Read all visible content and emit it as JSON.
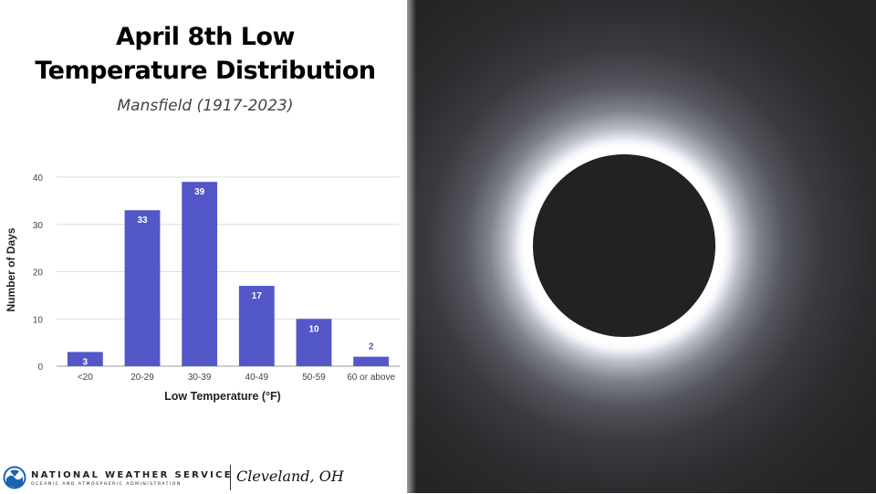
{
  "title_line1": "April 8th Low",
  "title_line2": "Temperature Distribution",
  "subtitle": "Mansfield (1917-2023)",
  "footer": {
    "agency_name": "NATIONAL WEATHER SERVICE",
    "agency_subtitle": "OCEANIC AND ATMOSPHERIC ADMINISTRATION",
    "office": "Cleveland, OH",
    "logo_icon": "noaa-logo-icon"
  },
  "photo": {
    "subject": "eclipse-photo"
  },
  "colors": {
    "bar": "#5457c8",
    "grid": "#dddddd",
    "axis_text": "#444444"
  },
  "chart_data": {
    "type": "bar",
    "categories": [
      "<20",
      "20-29",
      "30-39",
      "40-49",
      "50-59",
      "60 or above"
    ],
    "values": [
      3,
      33,
      39,
      17,
      10,
      2
    ],
    "data_labels": [
      "3",
      "33",
      "39",
      "17",
      "10",
      "2"
    ],
    "xlabel": "Low Temperature (°F)",
    "ylabel": "Number of Days",
    "ylim": [
      0,
      40
    ],
    "yticks": [
      0,
      10,
      20,
      30,
      40
    ],
    "grid": true,
    "legend": "none"
  }
}
